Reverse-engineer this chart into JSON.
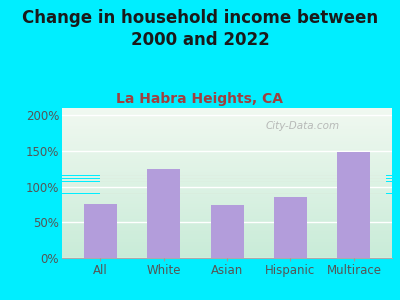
{
  "title": "Change in household income between\n2000 and 2022",
  "subtitle": "La Habra Heights, CA",
  "categories": [
    "All",
    "White",
    "Asian",
    "Hispanic",
    "Multirace"
  ],
  "values": [
    75,
    125,
    74,
    85,
    149
  ],
  "bar_color": "#b39ddb",
  "background_outer": "#00eeff",
  "title_fontsize": 12,
  "title_color": "#1a1a1a",
  "subtitle_fontsize": 10,
  "subtitle_color": "#a04040",
  "tick_label_color": "#555555",
  "ytick_labels": [
    "0%",
    "50%",
    "100%",
    "150%",
    "200%"
  ],
  "ytick_values": [
    0,
    50,
    100,
    150,
    200
  ],
  "ylim": [
    0,
    210
  ],
  "watermark": "City-Data.com",
  "plot_bg_top": "#f0f8f0",
  "plot_bg_bottom": "#d8f0e8"
}
